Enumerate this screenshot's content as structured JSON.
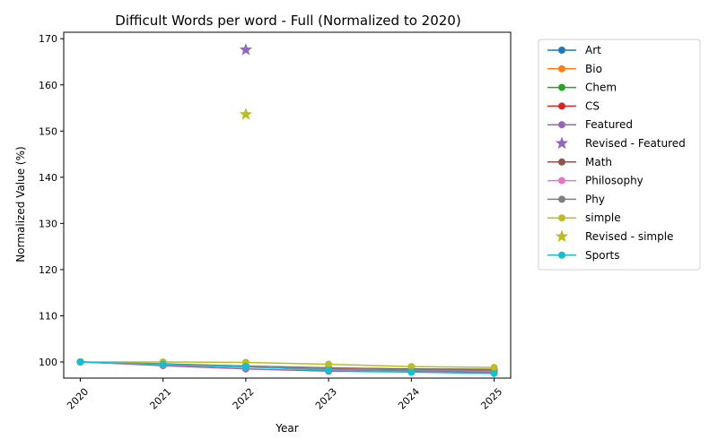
{
  "chart_data": {
    "type": "line",
    "title": "Difficult Words per word - Full (Normalized to 2020)",
    "xlabel": "Year",
    "ylabel": "Normalized Value (%)",
    "x": [
      2020,
      2021,
      2022,
      2023,
      2024,
      2025
    ],
    "xlim": [
      2019.8,
      2025.2
    ],
    "ylim": [
      96.5,
      171.4
    ],
    "yticks": [
      100,
      110,
      120,
      130,
      140,
      150,
      160,
      170
    ],
    "legend_position": "outside-right",
    "series": [
      {
        "name": "Art",
        "kind": "line",
        "marker": "circle",
        "color": "#1f77b4",
        "values": [
          100,
          99.4,
          98.9,
          98.4,
          98.1,
          97.9
        ]
      },
      {
        "name": "Bio",
        "kind": "line",
        "marker": "circle",
        "color": "#ff7f0e",
        "values": [
          100,
          99.5,
          99.0,
          98.6,
          98.3,
          98.1
        ]
      },
      {
        "name": "Chem",
        "kind": "line",
        "marker": "circle",
        "color": "#2ca02c",
        "values": [
          100,
          99.6,
          99.1,
          98.7,
          98.4,
          98.2
        ]
      },
      {
        "name": "CS",
        "kind": "line",
        "marker": "circle",
        "color": "#d62728",
        "values": [
          100,
          99.4,
          99.0,
          98.5,
          98.2,
          98.0
        ]
      },
      {
        "name": "Featured",
        "kind": "line",
        "marker": "circle",
        "color": "#9467bd",
        "values": [
          100,
          99.2,
          98.5,
          98.0,
          97.8,
          97.7
        ]
      },
      {
        "name": "Revised - Featured",
        "kind": "point",
        "marker": "star",
        "color": "#9467bd",
        "x": 2022,
        "value": 167.6
      },
      {
        "name": "Math",
        "kind": "line",
        "marker": "circle",
        "color": "#8c564b",
        "values": [
          100,
          99.5,
          99.1,
          98.7,
          98.5,
          98.4
        ]
      },
      {
        "name": "Philosophy",
        "kind": "line",
        "marker": "circle",
        "color": "#e377c2",
        "values": [
          100,
          99.4,
          98.9,
          98.5,
          98.2,
          98.0
        ]
      },
      {
        "name": "Phy",
        "kind": "line",
        "marker": "circle",
        "color": "#7f7f7f",
        "values": [
          100,
          99.5,
          99.0,
          98.6,
          98.3,
          98.2
        ]
      },
      {
        "name": "simple",
        "kind": "line",
        "marker": "circle",
        "color": "#bcbd22",
        "values": [
          100,
          100.0,
          99.9,
          99.5,
          99.0,
          98.8
        ]
      },
      {
        "name": "Revised - simple",
        "kind": "point",
        "marker": "star",
        "color": "#bcbd22",
        "x": 2022,
        "value": 153.6
      },
      {
        "name": "Sports",
        "kind": "line",
        "marker": "circle",
        "color": "#17becf",
        "values": [
          100,
          99.5,
          99.0,
          98.2,
          97.8,
          97.5
        ]
      }
    ]
  }
}
